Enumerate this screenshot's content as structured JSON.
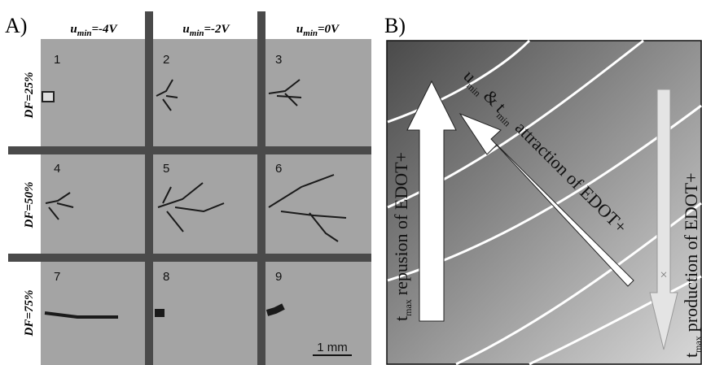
{
  "panel_a": {
    "label": "A)",
    "columns": [
      {
        "symbol": "u",
        "subscript": "min",
        "rest": "=-4V"
      },
      {
        "symbol": "u",
        "subscript": "min",
        "rest": "=-2V"
      },
      {
        "symbol": "u",
        "subscript": "min",
        "rest": "=0V"
      }
    ],
    "rows": [
      "DF=25%",
      "DF=50%",
      "DF=75%"
    ],
    "cells": [
      "1",
      "2",
      "3",
      "4",
      "5",
      "6",
      "7",
      "8",
      "9"
    ],
    "scale_bar": "1 mm"
  },
  "panel_b": {
    "label": "B)",
    "left_arrow": {
      "symbol": "t",
      "subscript": "max",
      "text": "repusion of EDOT+"
    },
    "diagonal_arrow": {
      "symbol1": "u",
      "subscript1": "min",
      "joiner": "&",
      "symbol2": "t",
      "subscript2": "min",
      "text": "attraction of EDOT+"
    },
    "right_arrow": {
      "symbol": "t",
      "subscript": "max",
      "text": "production of EDOT+"
    },
    "marker": "×"
  }
}
